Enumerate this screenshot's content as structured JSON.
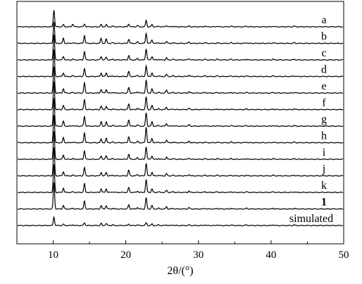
{
  "chart_data": {
    "type": "line",
    "title": "",
    "xlabel": "2θ/(°)",
    "ylabel": "",
    "xlim": [
      5,
      50
    ],
    "x_ticks": [
      10,
      20,
      30,
      40,
      50
    ],
    "tick_labels": [
      "10",
      "20",
      "30",
      "40",
      "50"
    ],
    "y_ticks_shown": false,
    "grid": false,
    "legend": "labels at right end of each trace",
    "offset_stacked": true,
    "peaks_2theta": [
      10.1,
      11.4,
      12.7,
      14.3,
      16.6,
      17.3,
      18.2,
      20.4,
      21.6,
      22.8,
      23.6,
      24.5,
      25.6,
      26.5,
      28.7,
      30.9,
      32.6,
      34.5,
      36.6,
      40.3,
      43.2
    ],
    "series": [
      {
        "name": "a",
        "peak_heights": [
          24,
          3,
          4,
          4,
          3,
          3,
          1,
          4,
          2,
          9,
          3,
          1,
          2,
          1,
          1,
          1,
          1,
          1,
          1,
          1,
          1
        ]
      },
      {
        "name": "b",
        "peak_heights": [
          31,
          7,
          1,
          11,
          7,
          6,
          1,
          6,
          2,
          14,
          5,
          1,
          3,
          1,
          2,
          1,
          1,
          1,
          1,
          1,
          1
        ]
      },
      {
        "name": "c",
        "peak_heights": [
          36,
          5,
          1,
          12,
          5,
          4,
          1,
          6,
          2,
          16,
          5,
          1,
          3,
          1,
          2,
          1,
          1,
          1,
          1,
          1,
          1
        ]
      },
      {
        "name": "d",
        "peak_heights": [
          38,
          5,
          1,
          11,
          5,
          5,
          1,
          7,
          2,
          15,
          5,
          1,
          3,
          1,
          2,
          1,
          1,
          1,
          1,
          1,
          1
        ]
      },
      {
        "name": "e",
        "peak_heights": [
          38,
          6,
          1,
          14,
          5,
          5,
          1,
          8,
          2,
          18,
          6,
          1,
          4,
          1,
          2,
          1,
          1,
          1,
          1,
          1,
          1
        ]
      },
      {
        "name": "f",
        "peak_heights": [
          40,
          6,
          1,
          14,
          5,
          5,
          1,
          8,
          2,
          18,
          6,
          1,
          3,
          1,
          2,
          1,
          1,
          1,
          1,
          1,
          1
        ]
      },
      {
        "name": "g",
        "peak_heights": [
          40,
          7,
          1,
          14,
          6,
          6,
          1,
          9,
          2,
          19,
          6,
          1,
          4,
          1,
          2,
          1,
          1,
          1,
          1,
          1,
          1
        ]
      },
      {
        "name": "h",
        "peak_heights": [
          40,
          7,
          1,
          14,
          5,
          6,
          1,
          9,
          2,
          22,
          6,
          1,
          4,
          1,
          2,
          1,
          1,
          1,
          1,
          1,
          1
        ]
      },
      {
        "name": "i",
        "peak_heights": [
          40,
          6,
          1,
          12,
          5,
          5,
          1,
          7,
          2,
          18,
          5,
          1,
          3,
          1,
          2,
          1,
          1,
          1,
          1,
          1,
          1
        ]
      },
      {
        "name": "j",
        "peak_heights": [
          40,
          6,
          1,
          12,
          5,
          5,
          1,
          8,
          2,
          18,
          5,
          1,
          3,
          1,
          2,
          1,
          1,
          1,
          1,
          1,
          1
        ]
      },
      {
        "name": "k",
        "peak_heights": [
          40,
          6,
          1,
          12,
          5,
          5,
          1,
          7,
          2,
          18,
          5,
          1,
          3,
          1,
          2,
          1,
          1,
          1,
          1,
          1,
          1
        ]
      },
      {
        "name": "1",
        "peak_heights": [
          38,
          5,
          1,
          11,
          5,
          5,
          1,
          6,
          2,
          16,
          5,
          1,
          3,
          1,
          2,
          1,
          1,
          1,
          1,
          1,
          1
        ]
      },
      {
        "name": "simulated",
        "peak_heights": [
          12,
          2,
          1,
          4,
          3,
          3,
          1,
          2,
          1,
          4,
          2,
          1,
          1,
          1,
          1,
          1,
          1,
          1,
          1,
          1,
          1
        ]
      }
    ]
  }
}
